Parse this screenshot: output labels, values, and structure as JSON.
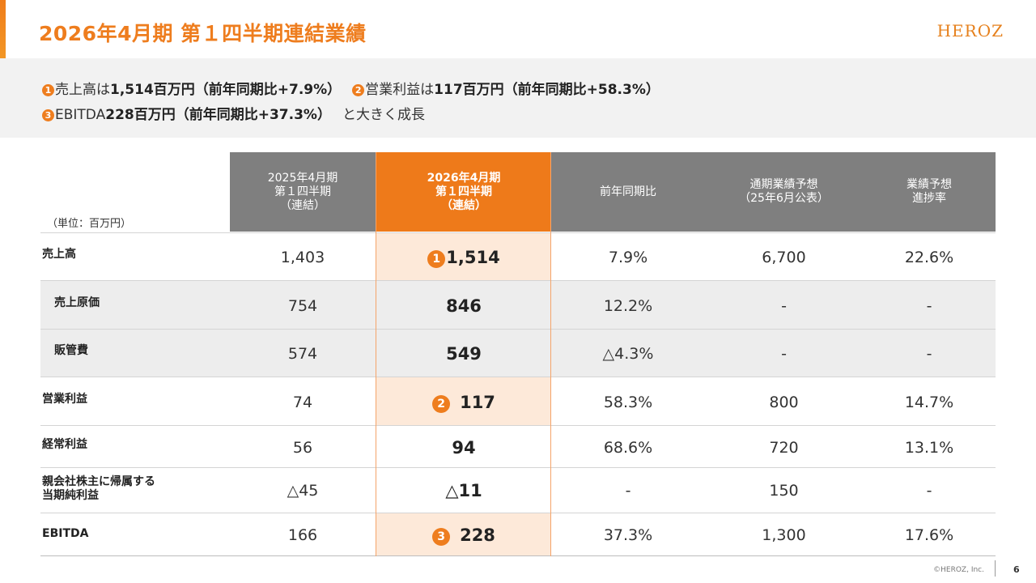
{
  "title": "2026年4月期 第１四半期連結業績",
  "logo": "HEROZ",
  "summary": {
    "line1": [
      {
        "badge": "1",
        "t1": "売上高は",
        "b": "1,514百万円（前年同期比+7.9%）"
      },
      {
        "badge": "2",
        "t1": "営業利益は",
        "b": "117百万円（前年同期比+58.3%）"
      }
    ],
    "line2": {
      "badge": "3",
      "t1": "EBITDA",
      "b": "228百万円（前年同期比+37.3%）",
      "t2": "と大きく成長"
    }
  },
  "unit_label": "（単位：百万円）",
  "headers": {
    "prev": [
      "2025年4月期",
      "第１四半期",
      "（連結）"
    ],
    "cur": [
      "2026年4月期",
      "第１四半期",
      "（連結）"
    ],
    "yoy": "前年同期比",
    "forecast": [
      "通期業績予想",
      "（25年6月公表）"
    ],
    "progress": [
      "業績予想",
      "進捗率"
    ]
  },
  "rows": [
    {
      "label": "売上高",
      "prev": "1,403",
      "cur": "1,514",
      "badge": "1",
      "yoy": "7.9%",
      "forecast": "6,700",
      "progress": "22.6%"
    },
    {
      "label": "売上原価",
      "prev": "754",
      "cur": "846",
      "badge": "",
      "yoy": "12.2%",
      "forecast": "-",
      "progress": "-"
    },
    {
      "label": "販管費",
      "prev": "574",
      "cur": "549",
      "badge": "",
      "yoy": "△4.3%",
      "forecast": "-",
      "progress": "-"
    },
    {
      "label": "営業利益",
      "prev": "74",
      "cur": "117",
      "badge": "2",
      "yoy": "58.3%",
      "forecast": "800",
      "progress": "14.7%"
    },
    {
      "label": "経常利益",
      "prev": "56",
      "cur": "94",
      "badge": "",
      "yoy": "68.6%",
      "forecast": "720",
      "progress": "13.1%"
    },
    {
      "label": "親会社株主に帰属する\n当期純利益",
      "prev": "△45",
      "cur": "△11",
      "badge": "",
      "yoy": "-",
      "forecast": "150",
      "progress": "-"
    },
    {
      "label": "EBITDA",
      "prev": "166",
      "cur": "228",
      "badge": "3",
      "yoy": "37.3%",
      "forecast": "1,300",
      "progress": "17.6%"
    }
  ],
  "footer": {
    "copyright": "©HEROZ, Inc.",
    "page": "6"
  },
  "colors": {
    "accent": "#ee7d1e",
    "header_gray": "#7f7f7f",
    "highlight": "#fde9d9"
  }
}
